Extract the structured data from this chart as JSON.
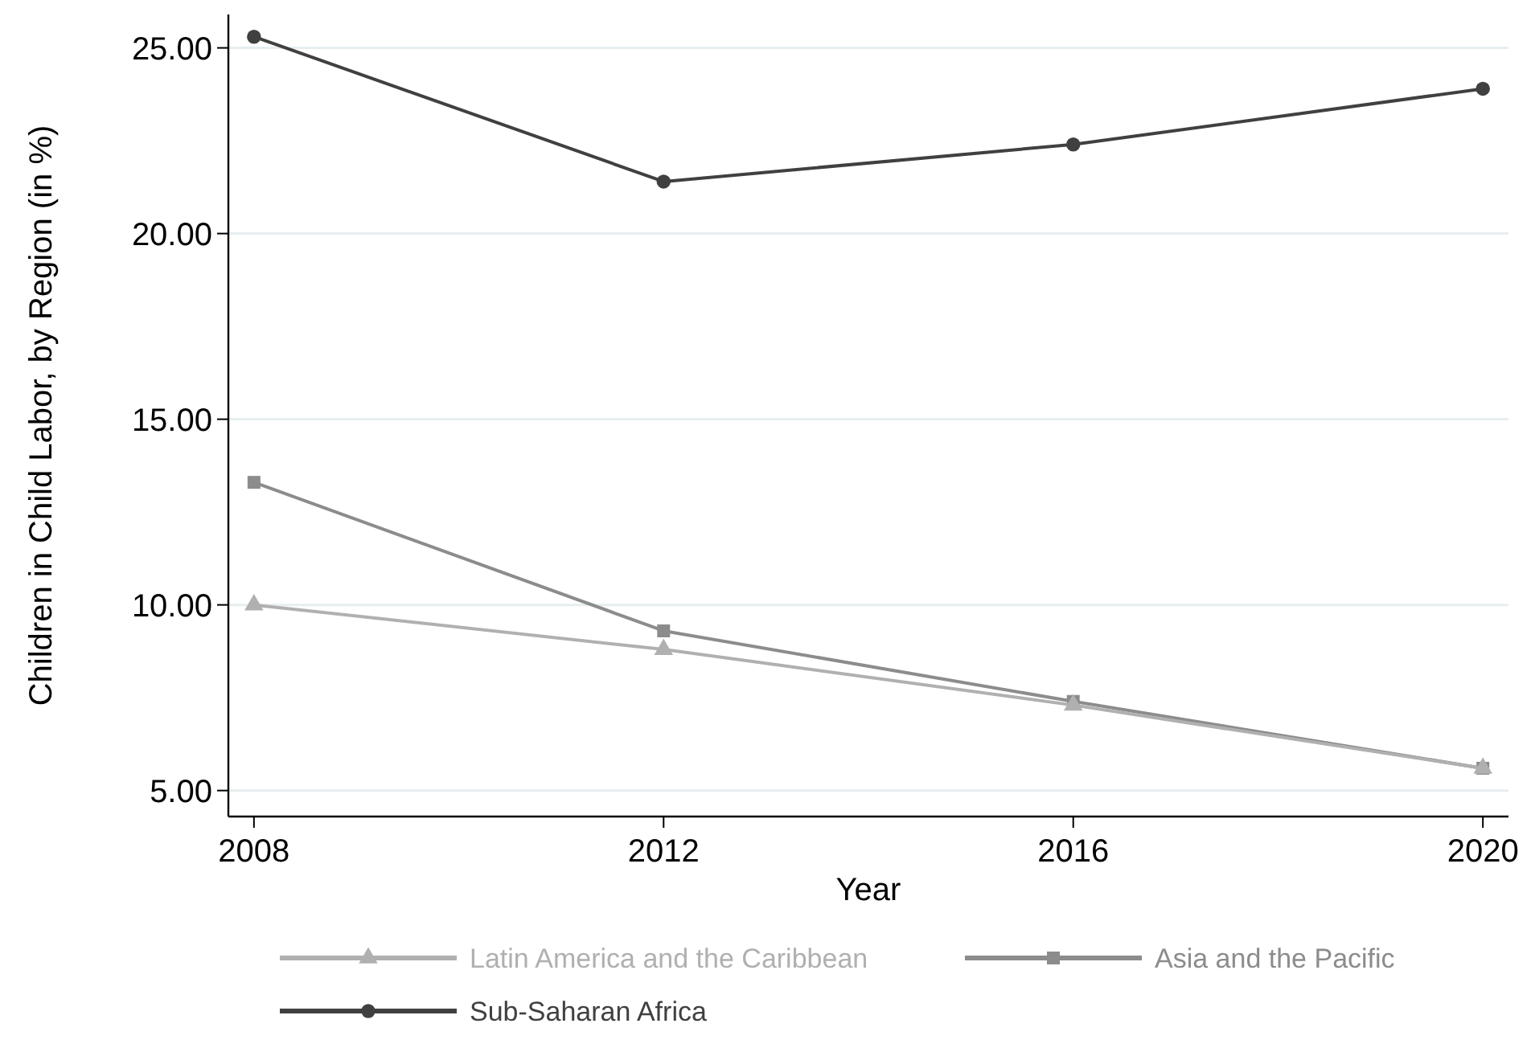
{
  "chart_data": {
    "type": "line",
    "xlabel": "Year",
    "ylabel": "Children in Child Labor, by Region (in %)",
    "x": [
      2008,
      2012,
      2016,
      2020
    ],
    "series": [
      {
        "name": "Latin America and the Caribbean",
        "color": "#b0b0b0",
        "marker": "triangle",
        "values": [
          10.0,
          8.8,
          7.3,
          5.6
        ]
      },
      {
        "name": "Asia and the Pacific",
        "color": "#8c8c8c",
        "marker": "square",
        "values": [
          13.3,
          9.3,
          7.4,
          5.6
        ]
      },
      {
        "name": "Sub-Saharan Africa",
        "color": "#404040",
        "marker": "circle",
        "values": [
          25.3,
          21.4,
          22.4,
          23.9
        ]
      }
    ],
    "xlim": [
      2007.75,
      2020.25
    ],
    "xticks": [
      2008,
      2012,
      2016,
      2020
    ],
    "ylim": [
      4.3,
      25.9
    ],
    "yticks": [
      {
        "value": 5,
        "label": "5.00"
      },
      {
        "value": 10,
        "label": "10.00"
      },
      {
        "value": 15,
        "label": "15.00"
      },
      {
        "value": 20,
        "label": "20.00"
      },
      {
        "value": 25,
        "label": "25.00"
      }
    ],
    "grid": "y",
    "legend": "bottom",
    "line_style": "solid"
  }
}
